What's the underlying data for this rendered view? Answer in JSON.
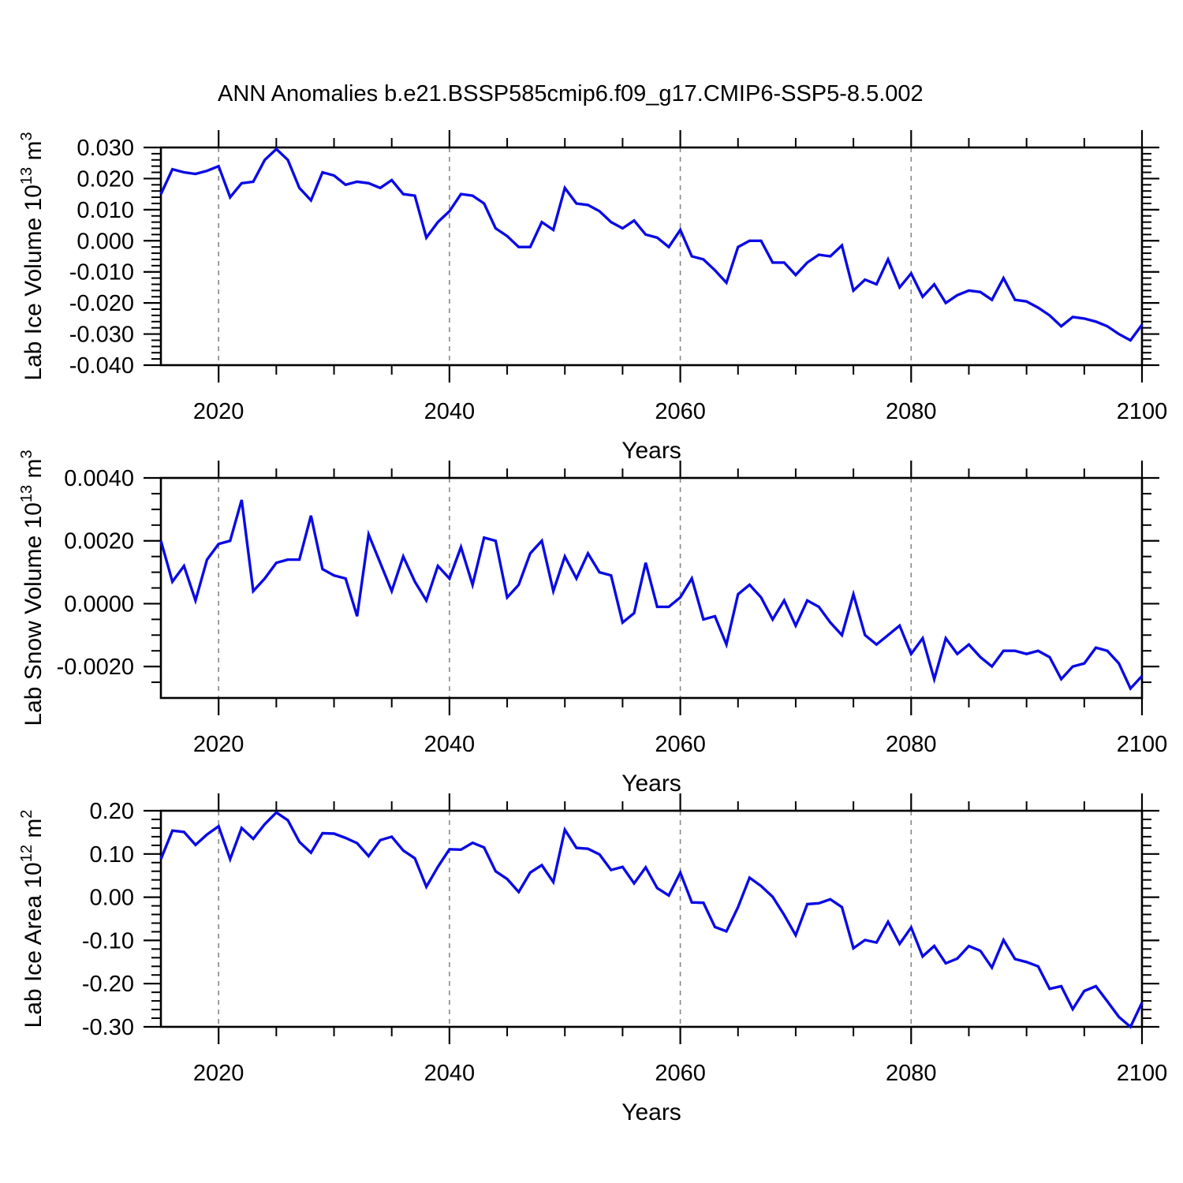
{
  "title": "ANN Anomalies b.e21.BSSP585cmip6.f09_g17.CMIP6-SSP5-8.5.002",
  "colors": {
    "line": "#0A0AE6",
    "axis": "#000000",
    "grid": "#888888",
    "background": "#FFFFFF",
    "text": "#000000"
  },
  "years": [
    2015,
    2016,
    2017,
    2018,
    2019,
    2020,
    2021,
    2022,
    2023,
    2024,
    2025,
    2026,
    2027,
    2028,
    2029,
    2030,
    2031,
    2032,
    2033,
    2034,
    2035,
    2036,
    2037,
    2038,
    2039,
    2040,
    2041,
    2042,
    2043,
    2044,
    2045,
    2046,
    2047,
    2048,
    2049,
    2050,
    2051,
    2052,
    2053,
    2054,
    2055,
    2056,
    2057,
    2058,
    2059,
    2060,
    2061,
    2062,
    2063,
    2064,
    2065,
    2066,
    2067,
    2068,
    2069,
    2070,
    2071,
    2072,
    2073,
    2074,
    2075,
    2076,
    2077,
    2078,
    2079,
    2080,
    2081,
    2082,
    2083,
    2084,
    2085,
    2086,
    2087,
    2088,
    2089,
    2090,
    2091,
    2092,
    2093,
    2094,
    2095,
    2096,
    2097,
    2098,
    2099,
    2100
  ],
  "chart_data": [
    {
      "type": "line",
      "panel": "top",
      "title": "",
      "xlabel": "Years",
      "ylabel": "Lab Ice Volume 10¹³ m³",
      "ylabel_parts": [
        [
          "Lab Ice Volume 10",
          0
        ],
        [
          "13",
          1
        ],
        [
          " m",
          0
        ],
        [
          "3",
          1
        ]
      ],
      "xlim": [
        2015,
        2100
      ],
      "ylim": [
        -0.04,
        0.03
      ],
      "xticks": [
        2020,
        2040,
        2060,
        2080,
        2100
      ],
      "xminor_step": 5,
      "gridlines_at": [
        2020,
        2040,
        2060,
        2080
      ],
      "ytick_values": [
        0.03,
        0.02,
        0.01,
        0.0,
        -0.01,
        -0.02,
        -0.03,
        -0.04
      ],
      "ytick_labels": [
        "0.030",
        "0.020",
        "0.010",
        "0.000",
        "-0.010",
        "-0.020",
        "-0.030",
        "-0.040"
      ],
      "yminor_step": 0.002,
      "grid": "vertical-dashed",
      "legend": "none",
      "series": [
        {
          "name": "Lab Ice Volume anomaly",
          "values": [
            0.015,
            0.023,
            0.022,
            0.0215,
            0.0225,
            0.024,
            0.014,
            0.0185,
            0.019,
            0.026,
            0.0295,
            0.026,
            0.017,
            0.013,
            0.022,
            0.021,
            0.018,
            0.019,
            0.0185,
            0.017,
            0.0195,
            0.015,
            0.0145,
            0.001,
            0.006,
            0.0095,
            0.015,
            0.0145,
            0.012,
            0.004,
            0.0015,
            -0.002,
            -0.002,
            0.006,
            0.0035,
            0.017,
            0.012,
            0.0115,
            0.0095,
            0.006,
            0.004,
            0.0065,
            0.002,
            0.001,
            -0.002,
            0.0035,
            -0.005,
            -0.006,
            -0.0095,
            -0.0135,
            -0.002,
            0.0,
            0.0,
            -0.007,
            -0.007,
            -0.011,
            -0.007,
            -0.0045,
            -0.005,
            -0.0015,
            -0.016,
            -0.0125,
            -0.014,
            -0.006,
            -0.015,
            -0.0105,
            -0.018,
            -0.014,
            -0.02,
            -0.0175,
            -0.016,
            -0.0165,
            -0.019,
            -0.012,
            -0.019,
            -0.0195,
            -0.0215,
            -0.024,
            -0.0275,
            -0.0245,
            -0.025,
            -0.026,
            -0.0275,
            -0.03,
            -0.032,
            -0.027
          ]
        }
      ]
    },
    {
      "type": "line",
      "panel": "middle",
      "title": "",
      "xlabel": "Years",
      "ylabel": "Lab Snow Volume 10¹³ m³",
      "ylabel_parts": [
        [
          "Lab Snow Volume 10",
          0
        ],
        [
          "13",
          1
        ],
        [
          " m",
          0
        ],
        [
          "3",
          1
        ]
      ],
      "xlim": [
        2015,
        2100
      ],
      "ylim": [
        -0.003,
        0.004
      ],
      "xticks": [
        2020,
        2040,
        2060,
        2080,
        2100
      ],
      "xminor_step": 5,
      "gridlines_at": [
        2020,
        2040,
        2060,
        2080
      ],
      "ytick_values": [
        0.004,
        0.002,
        0.0,
        -0.002
      ],
      "ytick_labels": [
        "0.0040",
        "0.0020",
        "0.0000",
        "-0.0020"
      ],
      "yminor_step": 0.0005,
      "grid": "vertical-dashed",
      "legend": "none",
      "series": [
        {
          "name": "Lab Snow Volume anomaly",
          "values": [
            0.002,
            0.0007,
            0.0012,
            0.0001,
            0.0014,
            0.0019,
            0.002,
            0.0033,
            0.0004,
            0.0008,
            0.0013,
            0.0014,
            0.0014,
            0.0028,
            0.0011,
            0.0009,
            0.0008,
            -0.0004,
            0.0022,
            0.0013,
            0.0004,
            0.0015,
            0.0007,
            0.0001,
            0.0012,
            0.0008,
            0.0018,
            0.0006,
            0.0021,
            0.002,
            0.0002,
            0.0006,
            0.0016,
            0.002,
            0.0004,
            0.0015,
            0.0008,
            0.0016,
            0.001,
            0.0009,
            -0.0006,
            -0.0003,
            0.0013,
            -0.0001,
            -0.0001,
            0.0002,
            0.0008,
            -0.0005,
            -0.0004,
            -0.0013,
            0.0003,
            0.0006,
            0.0002,
            -0.0005,
            0.0001,
            -0.0007,
            0.0001,
            -0.0001,
            -0.0006,
            -0.001,
            0.0003,
            -0.001,
            -0.0013,
            -0.001,
            -0.0007,
            -0.0016,
            -0.0011,
            -0.0024,
            -0.0011,
            -0.0016,
            -0.0013,
            -0.0017,
            -0.002,
            -0.0015,
            -0.0015,
            -0.0016,
            -0.0015,
            -0.0017,
            -0.0024,
            -0.002,
            -0.0019,
            -0.0014,
            -0.0015,
            -0.0019,
            -0.0027,
            -0.0023
          ]
        }
      ]
    },
    {
      "type": "line",
      "panel": "bottom",
      "title": "",
      "xlabel": "Years",
      "ylabel": "Lab Ice Area 10¹² m²",
      "ylabel_parts": [
        [
          "Lab Ice Area 10",
          0
        ],
        [
          "12",
          1
        ],
        [
          " m",
          0
        ],
        [
          "2",
          1
        ]
      ],
      "xlim": [
        2015,
        2100
      ],
      "ylim": [
        -0.3,
        0.2
      ],
      "xticks": [
        2020,
        2040,
        2060,
        2080,
        2100
      ],
      "xminor_step": 5,
      "gridlines_at": [
        2020,
        2040,
        2060,
        2080
      ],
      "ytick_values": [
        0.2,
        0.1,
        0.0,
        -0.1,
        -0.2,
        -0.3
      ],
      "ytick_labels": [
        "0.20",
        "0.10",
        "0.00",
        "-0.10",
        "-0.20",
        "-0.30"
      ],
      "yminor_step": 0.02,
      "grid": "vertical-dashed",
      "legend": "none",
      "series": [
        {
          "name": "Lab Ice Area anomaly",
          "values": [
            0.088,
            0.154,
            0.151,
            0.121,
            0.145,
            0.164,
            0.088,
            0.16,
            0.135,
            0.169,
            0.196,
            0.178,
            0.128,
            0.103,
            0.148,
            0.147,
            0.137,
            0.125,
            0.095,
            0.132,
            0.14,
            0.108,
            0.09,
            0.024,
            0.07,
            0.111,
            0.11,
            0.126,
            0.115,
            0.06,
            0.042,
            0.012,
            0.057,
            0.074,
            0.035,
            0.156,
            0.114,
            0.112,
            0.099,
            0.063,
            0.07,
            0.032,
            0.069,
            0.021,
            0.004,
            0.057,
            -0.012,
            -0.013,
            -0.069,
            -0.079,
            -0.023,
            0.045,
            0.026,
            0.001,
            -0.041,
            -0.088,
            -0.016,
            -0.014,
            -0.005,
            -0.023,
            -0.118,
            -0.099,
            -0.105,
            -0.057,
            -0.108,
            -0.07,
            -0.137,
            -0.113,
            -0.153,
            -0.142,
            -0.113,
            -0.124,
            -0.163,
            -0.099,
            -0.143,
            -0.15,
            -0.16,
            -0.212,
            -0.206,
            -0.259,
            -0.217,
            -0.206,
            -0.241,
            -0.277,
            -0.3,
            -0.244
          ]
        }
      ]
    }
  ]
}
